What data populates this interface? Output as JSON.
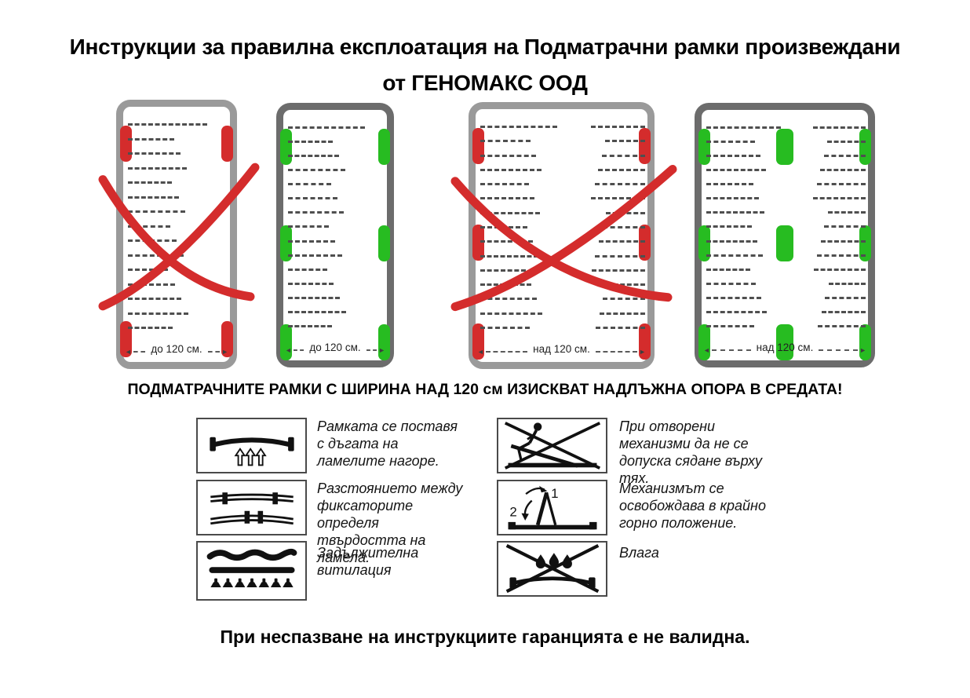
{
  "title": {
    "line1": "Инструкции за правилна експлоатация на Подматрачни рамки произвеждани",
    "line2": "от ГЕНОМАКС ООД"
  },
  "colors": {
    "cross_red": "#d42c2c",
    "pad_red": "#d42c2c",
    "pad_green": "#27bc21",
    "frame_border_light": "#9a9a9a",
    "frame_border_dark": "#6c6c6c",
    "warning_red": "#fb0000"
  },
  "diagrams": {
    "frames": [
      {
        "id": "narrow-incorrect",
        "width_label": "до 120 см.",
        "status": "incorrect",
        "crossed": true,
        "pad_color": "#d42c2c",
        "border_color": "#9a9a9a",
        "pad_rows": [
          "top",
          "bottom"
        ],
        "pad_columns": [
          "left",
          "right"
        ],
        "lamella_columns": 1
      },
      {
        "id": "narrow-correct",
        "width_label": "до 120 см.",
        "status": "correct",
        "crossed": false,
        "pad_color": "#27bc21",
        "border_color": "#6c6c6c",
        "pad_rows": [
          "top",
          "middle",
          "bottom"
        ],
        "pad_columns": [
          "left",
          "right"
        ],
        "lamella_columns": 1
      },
      {
        "id": "wide-incorrect",
        "width_label": "над 120 см.",
        "status": "incorrect",
        "crossed": true,
        "pad_color": "#d42c2c",
        "border_color": "#9a9a9a",
        "pad_rows": [
          "top",
          "middle",
          "bottom"
        ],
        "pad_columns": [
          "left",
          "right"
        ],
        "lamella_columns": 2
      },
      {
        "id": "wide-correct",
        "width_label": "над 120 см.",
        "status": "correct",
        "crossed": false,
        "pad_color": "#27bc21",
        "border_color": "#6c6c6c",
        "pad_rows": [
          "top",
          "middle",
          "bottom"
        ],
        "pad_columns": [
          "left",
          "center",
          "right"
        ],
        "lamella_columns": 2
      }
    ],
    "note": "ПОДМАТРАЧНИТЕ РАМКИ С ШИРИНА НАД 120 см ИЗИСКВАТ НАДЛЪЖНА ОПОРА В СРЕДАТА!"
  },
  "instructions": [
    {
      "icon": "arched-lamella-up-icon",
      "text": "Рамката се поставя с дъгата на ламелите нагоре."
    },
    {
      "icon": "lamella-fixators-icon",
      "text": "Разстоянието между фиксаторите определя твърдостта на ламела."
    },
    {
      "icon": "ventilation-icon",
      "text": "Задължителна витилация"
    },
    {
      "icon": "no-sitting-on-mechanism-icon",
      "text": "При отворени механизми да не се допуска сядане върху тях."
    },
    {
      "icon": "mechanism-release-icon",
      "text": "Механизмът се освобождава в крайно горно положение."
    },
    {
      "icon": "no-moisture-icon",
      "text": "Влага"
    }
  ],
  "warning": "При неспазване на инструкциите гаранцията е не валидна."
}
